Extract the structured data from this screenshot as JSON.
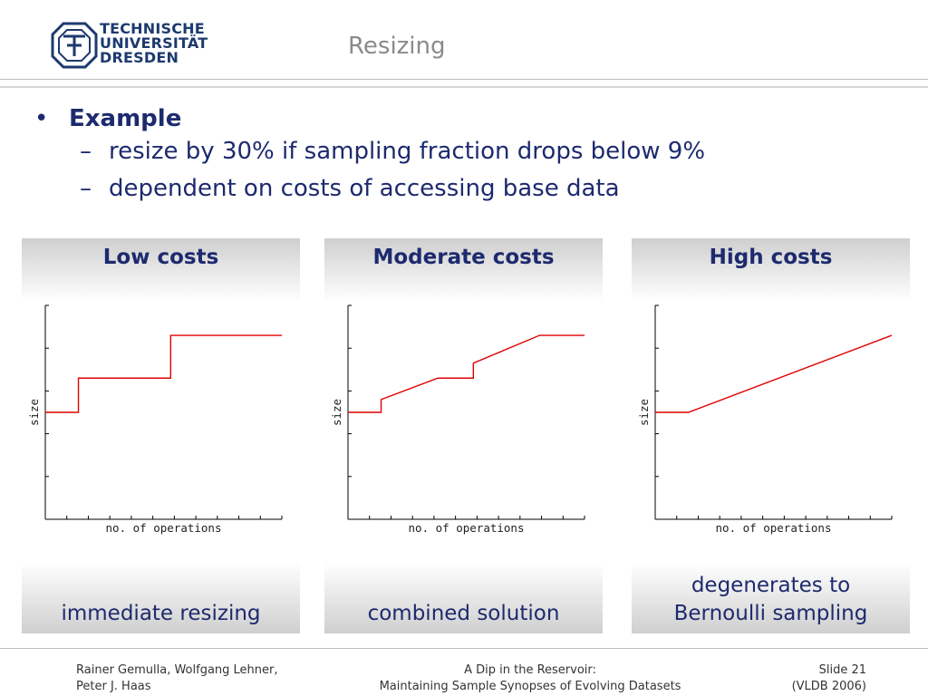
{
  "header": {
    "logo_lines": [
      "TECHNISCHE",
      "UNIVERSITÄT",
      "DRESDEN"
    ],
    "title": "Resizing"
  },
  "bullets": {
    "heading": "Example",
    "items": [
      "resize by 30% if sampling fraction drops below 9%",
      "dependent on costs of accessing base data"
    ]
  },
  "panels": [
    {
      "title": "Low costs",
      "caption_lines": [
        "immediate resizing"
      ]
    },
    {
      "title": "Moderate costs",
      "caption_lines": [
        "combined solution"
      ]
    },
    {
      "title": "High costs",
      "caption_lines": [
        "degenerates to",
        "Bernoulli sampling"
      ]
    }
  ],
  "chart_data": [
    {
      "type": "line",
      "xlabel": "no. of operations",
      "ylabel": "size",
      "xlim": [
        0,
        1
      ],
      "ylim": [
        0,
        1
      ],
      "series": [
        {
          "color": "#e00000",
          "x": [
            0,
            0.14,
            0.14,
            0.53,
            0.53,
            1.0
          ],
          "y": [
            0.5,
            0.5,
            0.66,
            0.66,
            0.86,
            0.86
          ]
        }
      ]
    },
    {
      "type": "line",
      "xlabel": "no. of operations",
      "ylabel": "size",
      "xlim": [
        0,
        1
      ],
      "ylim": [
        0,
        1
      ],
      "series": [
        {
          "color": "#e00000",
          "x": [
            0,
            0.14,
            0.14,
            0.38,
            0.53,
            0.53,
            0.81,
            1.0
          ],
          "y": [
            0.5,
            0.5,
            0.56,
            0.66,
            0.66,
            0.73,
            0.86,
            0.86
          ]
        }
      ]
    },
    {
      "type": "line",
      "xlabel": "no. of operations",
      "ylabel": "size",
      "xlim": [
        0,
        1
      ],
      "ylim": [
        0,
        1
      ],
      "series": [
        {
          "color": "#e00000",
          "x": [
            0,
            0.14,
            1.0
          ],
          "y": [
            0.5,
            0.5,
            0.86
          ]
        }
      ]
    }
  ],
  "footer": {
    "authors_line1": "Rainer Gemulla, Wolfgang Lehner,",
    "authors_line2": "Peter J. Haas",
    "talk_line1": "A Dip in the Reservoir:",
    "talk_line2": "Maintaining Sample Synopses of Evolving Datasets",
    "slide_label": "Slide 21",
    "venue": "(VLDB 2006)"
  },
  "colors": {
    "accent": "#1d2a6e",
    "series": "#e00000",
    "title_gray": "#8a8a8a"
  }
}
